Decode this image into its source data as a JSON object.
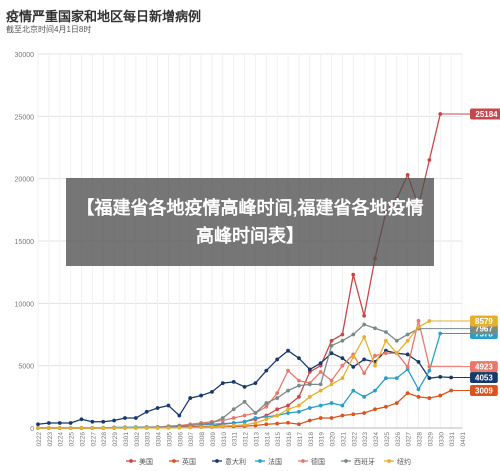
{
  "header": {
    "title": "疫情严重国家和地区每日新增病例",
    "subtitle": "截至北京时间4月1日8时"
  },
  "overlay": {
    "headline": "【福建省各地疫情高峰时间,福建省各地疫情高峰时间表】"
  },
  "chart_data": {
    "type": "line",
    "title": "疫情严重国家和地区每日新增病例",
    "subtitle": "截至北京时间4月1日8时",
    "ylim": [
      0,
      30000
    ],
    "yticks": [
      0,
      5000,
      10000,
      15000,
      20000,
      25000,
      30000
    ],
    "grid": true,
    "legend_position": "bottom",
    "categories": [
      "0222",
      "0223",
      "0224",
      "0225",
      "0226",
      "0227",
      "0228",
      "0229",
      "0301",
      "0302",
      "0303",
      "0304",
      "0305",
      "0306",
      "0307",
      "0308",
      "0309",
      "0310",
      "0311",
      "0312",
      "0313",
      "0314",
      "0315",
      "0316",
      "0317",
      "0318",
      "0319",
      "0320",
      "0321",
      "0322",
      "0323",
      "0324",
      "0325",
      "0326",
      "0327",
      "0328",
      "0329",
      "0330",
      "0331",
      "0401"
    ],
    "series": [
      {
        "name": "美国",
        "color": "#c9474b",
        "end_label": "25184",
        "values": [
          0,
          0,
          0,
          0,
          1,
          1,
          2,
          8,
          7,
          20,
          25,
          30,
          70,
          80,
          100,
          120,
          150,
          300,
          400,
          500,
          700,
          1000,
          1500,
          1800,
          2500,
          4500,
          5000,
          7000,
          7500,
          12300,
          9000,
          13600,
          17300,
          18400,
          20300,
          17800,
          21500,
          25184,
          null,
          null
        ]
      },
      {
        "name": "英国",
        "color": "#d9541e",
        "end_label": "3009",
        "values": [
          0,
          0,
          0,
          0,
          0,
          2,
          3,
          5,
          10,
          8,
          15,
          20,
          30,
          45,
          60,
          70,
          80,
          120,
          130,
          150,
          200,
          300,
          350,
          420,
          300,
          600,
          800,
          800,
          1000,
          1100,
          1200,
          1500,
          1700,
          2000,
          2800,
          2500,
          2400,
          2600,
          3009,
          null
        ]
      },
      {
        "name": "意大利",
        "color": "#173a6b",
        "end_label": "4053",
        "values": [
          300,
          400,
          400,
          400,
          700,
          500,
          500,
          600,
          800,
          800,
          1300,
          1600,
          1800,
          1000,
          2400,
          2600,
          2900,
          3600,
          3700,
          3300,
          3600,
          4600,
          5500,
          6200,
          5600,
          4700,
          5200,
          6000,
          5600,
          4900,
          5500,
          5300,
          6200,
          6000,
          5900,
          5300,
          4000,
          4100,
          4053,
          null
        ]
      },
      {
        "name": "法国",
        "color": "#2a9fc7",
        "end_label": "7578",
        "values": [
          0,
          0,
          0,
          0,
          0,
          0,
          20,
          50,
          60,
          70,
          80,
          90,
          100,
          150,
          200,
          280,
          300,
          350,
          400,
          500,
          800,
          900,
          1000,
          1200,
          1300,
          1600,
          1800,
          2000,
          1800,
          3000,
          2500,
          3000,
          4000,
          4000,
          4700,
          3100,
          4600,
          7578,
          null,
          null
        ]
      },
      {
        "name": "德国",
        "color": "#e8776c",
        "end_label": "4923",
        "values": [
          0,
          0,
          0,
          0,
          0,
          5,
          10,
          20,
          20,
          30,
          50,
          80,
          150,
          200,
          300,
          400,
          500,
          600,
          800,
          1000,
          1200,
          1700,
          2800,
          4600,
          3800,
          3600,
          4500,
          3800,
          5000,
          5900,
          4400,
          5800,
          6000,
          6000,
          4900,
          8600,
          4923,
          null,
          null,
          null
        ]
      },
      {
        "name": "西班牙",
        "color": "#7a8a88",
        "end_label": "7967",
        "values": [
          0,
          0,
          0,
          0,
          0,
          0,
          5,
          10,
          20,
          30,
          50,
          60,
          100,
          170,
          200,
          300,
          400,
          800,
          1500,
          2100,
          1200,
          2000,
          2400,
          3000,
          3400,
          3500,
          3500,
          6600,
          7000,
          7500,
          8300,
          8000,
          7700,
          7000,
          7500,
          7967,
          null,
          null,
          null,
          null
        ]
      },
      {
        "name": "纽约",
        "color": "#e5b02e",
        "end_label": "8579",
        "values": [
          0,
          0,
          0,
          0,
          0,
          0,
          0,
          0,
          0,
          1,
          2,
          5,
          10,
          20,
          40,
          60,
          100,
          150,
          200,
          250,
          400,
          700,
          1000,
          1500,
          1800,
          2500,
          3000,
          3500,
          4000,
          5700,
          7300,
          5000,
          7000,
          6000,
          7000,
          8100,
          8579,
          null,
          null,
          null
        ]
      }
    ]
  }
}
